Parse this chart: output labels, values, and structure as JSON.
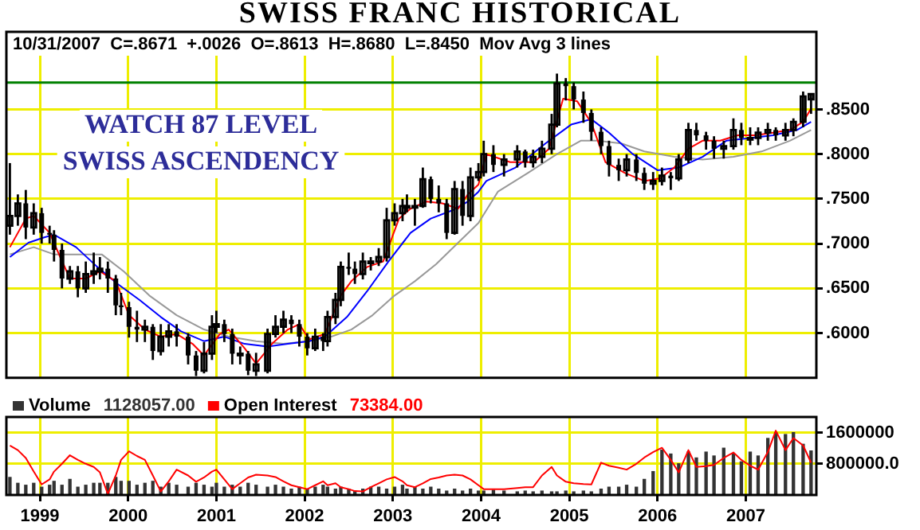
{
  "chart_data": [
    {
      "type": "candlestick",
      "title": "SWISS FRANC HISTORICAL",
      "subtitle": "10/31/2007  C=.8671  +.0026  O=.8613  H=.8680  L=.8450  Mov Avg 3 lines",
      "color": "#000000",
      "x": [
        1998.66,
        1998.75,
        1998.84,
        1998.93,
        1999.02,
        1999.11,
        1999.16,
        1999.25,
        1999.34,
        1999.43,
        1999.52,
        1999.61,
        1999.68,
        1999.77,
        1999.86,
        1999.92,
        2000.01,
        2000.1,
        2000.19,
        2000.28,
        2000.37,
        2000.46,
        2000.55,
        2000.68,
        2000.77,
        2000.86,
        2000.95,
        2001.0,
        2001.09,
        2001.18,
        2001.27,
        2001.36,
        2001.45,
        2001.58,
        2001.67,
        2001.76,
        2001.85,
        2001.94,
        2002.03,
        2002.12,
        2002.21,
        2002.26,
        2002.35,
        2002.41,
        2002.5,
        2002.57,
        2002.66,
        2002.75,
        2002.84,
        2002.93,
        2003.02,
        2003.11,
        2003.16,
        2003.25,
        2003.34,
        2003.43,
        2003.52,
        2003.61,
        2003.7,
        2003.79,
        2003.88,
        2003.97,
        2004.03,
        2004.14,
        2004.26,
        2004.41,
        2004.5,
        2004.59,
        2004.69,
        2004.8,
        2004.86,
        2004.96,
        2005.05,
        2005.16,
        2005.25,
        2005.36,
        2005.45,
        2005.56,
        2005.65,
        2005.76,
        2005.85,
        2005.95,
        2006.05,
        2006.15,
        2006.24,
        2006.35,
        2006.44,
        2006.55,
        2006.64,
        2006.75,
        2006.86,
        2006.95,
        2007.05,
        2007.14,
        2007.25,
        2007.34,
        2007.45,
        2007.54,
        2007.65,
        2007.74
      ],
      "ohlc": [
        [
          0.72,
          0.79,
          0.71,
          0.731
        ],
        [
          0.731,
          0.755,
          0.72,
          0.745
        ],
        [
          0.745,
          0.76,
          0.705,
          0.718
        ],
        [
          0.718,
          0.745,
          0.71,
          0.734
        ],
        [
          0.734,
          0.74,
          0.7,
          0.712
        ],
        [
          0.712,
          0.72,
          0.7,
          0.71
        ],
        [
          0.71,
          0.715,
          0.68,
          0.693
        ],
        [
          0.693,
          0.7,
          0.65,
          0.661
        ],
        [
          0.661,
          0.675,
          0.655,
          0.669
        ],
        [
          0.669,
          0.675,
          0.64,
          0.65
        ],
        [
          0.65,
          0.68,
          0.645,
          0.666
        ],
        [
          0.666,
          0.69,
          0.655,
          0.669
        ],
        [
          0.669,
          0.685,
          0.66,
          0.672
        ],
        [
          0.672,
          0.68,
          0.645,
          0.661
        ],
        [
          0.661,
          0.665,
          0.62,
          0.631
        ],
        [
          0.631,
          0.645,
          0.62,
          0.629
        ],
        [
          0.629,
          0.635,
          0.595,
          0.607
        ],
        [
          0.607,
          0.625,
          0.59,
          0.604
        ],
        [
          0.604,
          0.615,
          0.59,
          0.607
        ],
        [
          0.607,
          0.61,
          0.57,
          0.58
        ],
        [
          0.58,
          0.61,
          0.575,
          0.596
        ],
        [
          0.596,
          0.61,
          0.585,
          0.602
        ],
        [
          0.602,
          0.61,
          0.585,
          0.596
        ],
        [
          0.596,
          0.6,
          0.565,
          0.575
        ],
        [
          0.575,
          0.58,
          0.552,
          0.558
        ],
        [
          0.558,
          0.59,
          0.555,
          0.577
        ],
        [
          0.577,
          0.62,
          0.57,
          0.607
        ],
        [
          0.607,
          0.625,
          0.6,
          0.61
        ],
        [
          0.61,
          0.615,
          0.59,
          0.599
        ],
        [
          0.599,
          0.605,
          0.565,
          0.577
        ],
        [
          0.577,
          0.585,
          0.565,
          0.577
        ],
        [
          0.577,
          0.58,
          0.553,
          0.558
        ],
        [
          0.558,
          0.578,
          0.552,
          0.565
        ],
        [
          0.558,
          0.605,
          0.555,
          0.599
        ],
        [
          0.599,
          0.62,
          0.595,
          0.607
        ],
        [
          0.607,
          0.625,
          0.6,
          0.615
        ],
        [
          0.615,
          0.62,
          0.6,
          0.61
        ],
        [
          0.61,
          0.615,
          0.585,
          0.596
        ],
        [
          0.596,
          0.6,
          0.575,
          0.583
        ],
        [
          0.583,
          0.605,
          0.58,
          0.596
        ],
        [
          0.596,
          0.6,
          0.58,
          0.591
        ],
        [
          0.591,
          0.625,
          0.585,
          0.618
        ],
        [
          0.618,
          0.645,
          0.61,
          0.637
        ],
        [
          0.637,
          0.68,
          0.63,
          0.674
        ],
        [
          0.674,
          0.69,
          0.665,
          0.672
        ],
        [
          0.672,
          0.68,
          0.655,
          0.666
        ],
        [
          0.666,
          0.69,
          0.66,
          0.68
        ],
        [
          0.68,
          0.685,
          0.67,
          0.68
        ],
        [
          0.68,
          0.695,
          0.675,
          0.685
        ],
        [
          0.685,
          0.74,
          0.68,
          0.726
        ],
        [
          0.726,
          0.745,
          0.72,
          0.734
        ],
        [
          0.734,
          0.75,
          0.725,
          0.742
        ],
        [
          0.742,
          0.755,
          0.735,
          0.742
        ],
        [
          0.742,
          0.75,
          0.72,
          0.742
        ],
        [
          0.742,
          0.785,
          0.74,
          0.772
        ],
        [
          0.772,
          0.775,
          0.745,
          0.75
        ],
        [
          0.75,
          0.765,
          0.735,
          0.745
        ],
        [
          0.745,
          0.75,
          0.705,
          0.712
        ],
        [
          0.712,
          0.77,
          0.71,
          0.761
        ],
        [
          0.761,
          0.77,
          0.72,
          0.731
        ],
        [
          0.731,
          0.785,
          0.725,
          0.774
        ],
        [
          0.774,
          0.79,
          0.77,
          0.78
        ],
        [
          0.78,
          0.815,
          0.775,
          0.8
        ],
        [
          0.8,
          0.81,
          0.78,
          0.788
        ],
        [
          0.788,
          0.8,
          0.775,
          0.794
        ],
        [
          0.794,
          0.81,
          0.785,
          0.803
        ],
        [
          0.803,
          0.805,
          0.785,
          0.791
        ],
        [
          0.791,
          0.805,
          0.785,
          0.797
        ],
        [
          0.797,
          0.815,
          0.79,
          0.806
        ],
        [
          0.806,
          0.845,
          0.8,
          0.833
        ],
        [
          0.833,
          0.89,
          0.83,
          0.879
        ],
        [
          0.879,
          0.885,
          0.86,
          0.876
        ],
        [
          0.876,
          0.88,
          0.85,
          0.861
        ],
        [
          0.861,
          0.87,
          0.835,
          0.846
        ],
        [
          0.846,
          0.85,
          0.815,
          0.825
        ],
        [
          0.825,
          0.83,
          0.8,
          0.809
        ],
        [
          0.809,
          0.815,
          0.775,
          0.788
        ],
        [
          0.788,
          0.795,
          0.77,
          0.782
        ],
        [
          0.782,
          0.8,
          0.775,
          0.794
        ],
        [
          0.794,
          0.8,
          0.77,
          0.779
        ],
        [
          0.779,
          0.785,
          0.76,
          0.767
        ],
        [
          0.767,
          0.78,
          0.76,
          0.77
        ],
        [
          0.77,
          0.785,
          0.765,
          0.776
        ],
        [
          0.776,
          0.78,
          0.76,
          0.773
        ],
        [
          0.773,
          0.8,
          0.77,
          0.794
        ],
        [
          0.794,
          0.835,
          0.79,
          0.827
        ],
        [
          0.827,
          0.835,
          0.815,
          0.821
        ],
        [
          0.821,
          0.825,
          0.805,
          0.815
        ],
        [
          0.815,
          0.82,
          0.795,
          0.806
        ],
        [
          0.806,
          0.815,
          0.795,
          0.809
        ],
        [
          0.809,
          0.84,
          0.805,
          0.827
        ],
        [
          0.827,
          0.835,
          0.81,
          0.818
        ],
        [
          0.818,
          0.83,
          0.81,
          0.818
        ],
        [
          0.818,
          0.83,
          0.81,
          0.824
        ],
        [
          0.824,
          0.835,
          0.815,
          0.827
        ],
        [
          0.827,
          0.83,
          0.815,
          0.821
        ],
        [
          0.821,
          0.835,
          0.815,
          0.827
        ],
        [
          0.827,
          0.84,
          0.82,
          0.836
        ],
        [
          0.836,
          0.87,
          0.83,
          0.8645
        ],
        [
          0.8613,
          0.868,
          0.845,
          0.8671
        ]
      ],
      "series": [
        {
          "type": "line",
          "color": "#ff0000",
          "x": [
            1998.66,
            1998.84,
            1998.93,
            1999.11,
            1999.23,
            1999.34,
            1999.52,
            1999.68,
            1999.86,
            2000.01,
            2000.19,
            2000.37,
            2000.55,
            2000.73,
            2000.86,
            2001.04,
            2001.14,
            2001.32,
            2001.45,
            2001.63,
            2001.81,
            2001.94,
            2002.05,
            2002.23,
            2002.41,
            2002.53,
            2002.71,
            2002.89,
            2003.07,
            2003.2,
            2003.38,
            2003.56,
            2003.74,
            2003.85,
            2003.97,
            2004.06,
            2004.33,
            2004.6,
            2004.77,
            2004.93,
            2005.09,
            2005.25,
            2005.41,
            2005.63,
            2005.85,
            2006.03,
            2006.19,
            2006.35,
            2006.51,
            2006.71,
            2006.91,
            2007.11,
            2007.31,
            2007.5,
            2007.65,
            2007.74
          ],
          "values": [
            0.696,
            0.728,
            0.731,
            0.712,
            0.685,
            0.661,
            0.661,
            0.669,
            0.658,
            0.62,
            0.604,
            0.596,
            0.599,
            0.588,
            0.575,
            0.599,
            0.604,
            0.583,
            0.566,
            0.588,
            0.604,
            0.61,
            0.593,
            0.599,
            0.642,
            0.658,
            0.674,
            0.68,
            0.728,
            0.739,
            0.747,
            0.745,
            0.739,
            0.755,
            0.766,
            0.8,
            0.791,
            0.791,
            0.806,
            0.862,
            0.859,
            0.835,
            0.791,
            0.779,
            0.77,
            0.773,
            0.785,
            0.806,
            0.815,
            0.815,
            0.821,
            0.821,
            0.824,
            0.827,
            0.836,
            0.851
          ]
        },
        {
          "type": "line",
          "color": "#0000ff",
          "x": [
            1998.66,
            1998.87,
            1999.05,
            1999.16,
            1999.41,
            1999.65,
            1999.88,
            2000.13,
            2000.37,
            2000.6,
            2000.86,
            2001.09,
            2001.32,
            2001.58,
            2001.81,
            2002.05,
            2002.23,
            2002.48,
            2002.71,
            2002.95,
            2003.2,
            2003.43,
            2003.67,
            2003.85,
            2003.97,
            2004.06,
            2004.39,
            2004.73,
            2005.02,
            2005.25,
            2005.45,
            2005.72,
            2006.0,
            2006.24,
            2006.51,
            2006.78,
            2007.05,
            2007.31,
            2007.58,
            2007.74
          ],
          "values": [
            0.685,
            0.701,
            0.707,
            0.71,
            0.696,
            0.674,
            0.655,
            0.637,
            0.618,
            0.602,
            0.591,
            0.596,
            0.588,
            0.585,
            0.588,
            0.591,
            0.596,
            0.618,
            0.647,
            0.68,
            0.712,
            0.728,
            0.737,
            0.747,
            0.758,
            0.77,
            0.785,
            0.812,
            0.833,
            0.839,
            0.824,
            0.8,
            0.782,
            0.785,
            0.797,
            0.815,
            0.818,
            0.821,
            0.827,
            0.836
          ]
        },
        {
          "type": "line",
          "color": "#999999",
          "x": [
            1998.66,
            1998.93,
            1999.16,
            1999.47,
            1999.7,
            1999.95,
            2000.24,
            2000.55,
            2000.86,
            2001.14,
            2001.45,
            2001.76,
            2002.05,
            2002.3,
            2002.53,
            2002.77,
            2003.02,
            2003.25,
            2003.49,
            2003.74,
            2003.97,
            2004.19,
            2004.53,
            2004.86,
            2005.13,
            2005.32,
            2005.59,
            2005.85,
            2006.19,
            2006.51,
            2006.86,
            2007.18,
            2007.5,
            2007.74
          ],
          "values": [
            0.688,
            0.696,
            0.688,
            0.688,
            0.688,
            0.669,
            0.642,
            0.62,
            0.604,
            0.596,
            0.591,
            0.588,
            0.591,
            0.596,
            0.604,
            0.62,
            0.642,
            0.658,
            0.677,
            0.701,
            0.723,
            0.758,
            0.779,
            0.8,
            0.815,
            0.815,
            0.812,
            0.803,
            0.797,
            0.794,
            0.797,
            0.803,
            0.815,
            0.827
          ]
        }
      ],
      "xlim": [
        1998.62,
        2007.8
      ],
      "xticks": [
        1999,
        2000,
        2001,
        2002,
        2003,
        2004,
        2005,
        2006,
        2007
      ],
      "ylim": [
        0.55,
        0.91
      ],
      "yticks": [
        {
          "value": 0.6,
          "label": ".6000"
        },
        {
          "value": 0.65,
          "label": ".6500"
        },
        {
          "value": 0.7,
          "label": ".7000"
        },
        {
          "value": 0.75,
          "label": ".7500"
        },
        {
          "value": 0.8,
          "label": ".8000"
        },
        {
          "value": 0.85,
          "label": ".8500"
        }
      ],
      "ref_lines": [
        {
          "axis": "y",
          "value": 0.88,
          "color": "#008000"
        }
      ],
      "annotations": [
        "WATCH 87 LEVEL",
        "SWISS ASCENDENCY"
      ],
      "grid": true,
      "tick_labels": "y"
    },
    {
      "type": "bar",
      "legend": "top left",
      "annotations": [
        "1128057.00",
        "73384.00"
      ],
      "series": [
        {
          "type": "bar",
          "name": "Volume",
          "color": "#333333",
          "x": [
            1998.66,
            1998.75,
            1998.84,
            1998.93,
            1999.02,
            1999.11,
            1999.16,
            1999.25,
            1999.34,
            1999.43,
            1999.52,
            1999.61,
            1999.68,
            1999.77,
            1999.86,
            1999.92,
            2000.01,
            2000.1,
            2000.19,
            2000.28,
            2000.37,
            2000.46,
            2000.55,
            2000.68,
            2000.77,
            2000.86,
            2000.95,
            2001.0,
            2001.09,
            2001.18,
            2001.27,
            2001.36,
            2001.45,
            2001.58,
            2001.67,
            2001.76,
            2001.85,
            2001.94,
            2002.03,
            2002.12,
            2002.21,
            2002.26,
            2002.35,
            2002.41,
            2002.5,
            2002.57,
            2002.66,
            2002.75,
            2002.84,
            2002.93,
            2003.02,
            2003.11,
            2003.16,
            2003.25,
            2003.34,
            2003.43,
            2003.52,
            2003.61,
            2003.7,
            2003.79,
            2003.88,
            2003.97,
            2004.03,
            2004.14,
            2004.26,
            2004.41,
            2004.5,
            2004.59,
            2004.69,
            2004.8,
            2004.86,
            2004.96,
            2005.05,
            2005.16,
            2005.25,
            2005.36,
            2005.45,
            2005.56,
            2005.65,
            2005.76,
            2005.85,
            2005.95,
            2006.05,
            2006.15,
            2006.24,
            2006.35,
            2006.44,
            2006.55,
            2006.64,
            2006.75,
            2006.86,
            2006.95,
            2007.05,
            2007.14,
            2007.25,
            2007.34,
            2007.45,
            2007.54,
            2007.65,
            2007.74
          ],
          "values": [
            450000,
            300000,
            250000,
            300000,
            200000,
            250000,
            350000,
            250000,
            400000,
            200000,
            250000,
            300000,
            300000,
            300000,
            450000,
            350000,
            350000,
            250000,
            300000,
            350000,
            200000,
            300000,
            250000,
            200000,
            300000,
            250000,
            200000,
            300000,
            200000,
            250000,
            200000,
            300000,
            250000,
            200000,
            250000,
            200000,
            150000,
            200000,
            150000,
            200000,
            250000,
            200000,
            150000,
            200000,
            150000,
            100000,
            150000,
            200000,
            200000,
            150000,
            200000,
            250000,
            150000,
            200000,
            150000,
            200000,
            150000,
            100000,
            150000,
            100000,
            150000,
            100000,
            100000,
            120000,
            100000,
            80000,
            100000,
            80000,
            100000,
            80000,
            80000,
            100000,
            80000,
            100000,
            80000,
            150000,
            200000,
            200000,
            250000,
            200000,
            400000,
            600000,
            1150000,
            1050000,
            800000,
            1100000,
            950000,
            1100000,
            1000000,
            1200000,
            1050000,
            850000,
            1100000,
            1000000,
            1450000,
            1600000,
            1550000,
            1600000,
            1300000,
            1130000
          ]
        },
        {
          "type": "line",
          "name": "Open Interest",
          "color": "#ff0000",
          "x": [
            1998.66,
            1998.75,
            1998.84,
            1998.93,
            1999.02,
            1999.11,
            1999.16,
            1999.25,
            1999.34,
            1999.43,
            1999.52,
            1999.61,
            1999.68,
            1999.77,
            1999.86,
            1999.92,
            2000.01,
            2000.1,
            2000.19,
            2000.28,
            2000.37,
            2000.46,
            2000.55,
            2000.68,
            2000.77,
            2000.86,
            2000.95,
            2001.0,
            2001.09,
            2001.18,
            2001.27,
            2001.36,
            2001.45,
            2001.58,
            2001.67,
            2001.76,
            2001.85,
            2001.94,
            2002.03,
            2002.12,
            2002.21,
            2002.26,
            2002.35,
            2002.41,
            2002.5,
            2002.57,
            2002.66,
            2002.75,
            2002.84,
            2002.93,
            2003.02,
            2003.11,
            2003.16,
            2003.25,
            2003.34,
            2003.43,
            2003.52,
            2003.61,
            2003.7,
            2003.79,
            2003.88,
            2003.97,
            2004.03,
            2004.14,
            2004.26,
            2004.41,
            2004.5,
            2004.59,
            2004.69,
            2004.8,
            2004.86,
            2004.96,
            2005.05,
            2005.16,
            2005.25,
            2005.36,
            2005.45,
            2005.56,
            2005.65,
            2005.76,
            2005.85,
            2005.95,
            2006.05,
            2006.15,
            2006.24,
            2006.35,
            2006.44,
            2006.55,
            2006.64,
            2006.75,
            2006.86,
            2006.95,
            2007.05,
            2007.14,
            2007.25,
            2007.34,
            2007.45,
            2007.54,
            2007.65,
            2007.74
          ],
          "values": [
            1270000,
            1150000,
            950000,
            600000,
            270000,
            400000,
            600000,
            800000,
            1020000,
            900000,
            800000,
            720000,
            580000,
            30000,
            500000,
            900000,
            1120000,
            1000000,
            900000,
            500000,
            90000,
            350000,
            650000,
            500000,
            340000,
            450000,
            600000,
            650000,
            400000,
            150000,
            300000,
            450000,
            520000,
            500000,
            460000,
            350000,
            250000,
            200000,
            150000,
            250000,
            350000,
            250000,
            300000,
            200000,
            150000,
            100000,
            90000,
            200000,
            300000,
            400000,
            460000,
            350000,
            250000,
            200000,
            300000,
            410000,
            450000,
            500000,
            520000,
            500000,
            400000,
            250000,
            150000,
            150000,
            150000,
            180000,
            200000,
            200000,
            500000,
            720000,
            500000,
            340000,
            300000,
            280000,
            270000,
            830000,
            750000,
            700000,
            650000,
            800000,
            960000,
            1100000,
            1210000,
            900000,
            580000,
            1150000,
            720000,
            740000,
            770000,
            950000,
            1090000,
            900000,
            750000,
            650000,
            1100000,
            1650000,
            1150000,
            1460000,
            1270000,
            830000
          ]
        }
      ],
      "xlim": [
        1998.62,
        2007.8
      ],
      "xticks": [
        1999,
        2000,
        2001,
        2002,
        2003,
        2004,
        2005,
        2006,
        2007
      ],
      "ylim": [
        0,
        2000000
      ],
      "yticks": [
        {
          "value": 800000,
          "label": "800000.0"
        },
        {
          "value": 1600000,
          "label": "1600000"
        }
      ],
      "grid": true
    }
  ]
}
